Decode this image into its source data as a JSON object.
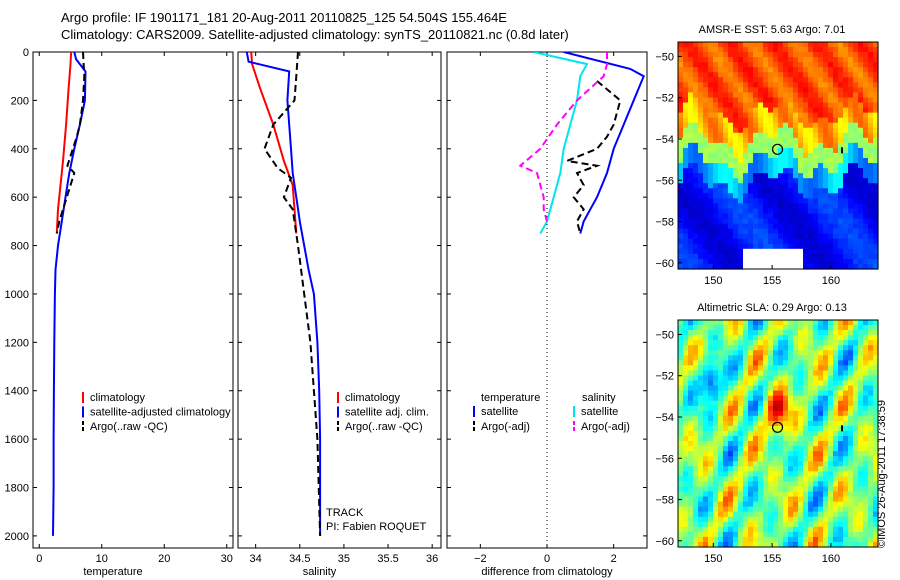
{
  "header": {
    "line1": "Argo profile: IF 1901171_181 20-Aug-2011 20110825_125 54.504S 155.464E",
    "line2": "Climatology: CARS2009. Satellite-adjusted climatology: synTS_20110821.nc (0.8d later)"
  },
  "stamp": "©IMOS 26-Aug-2011 17:38:59",
  "track_label": "TRACK",
  "pi_label": "PI: Fabien ROQUET",
  "colors": {
    "climatology": "#ff0000",
    "satellite": "#0000ff",
    "argo": "#000000",
    "sat_salinity": "#00e5ee",
    "argo_salinity": "#ff00ff"
  },
  "chart_data": [
    {
      "type": "line",
      "name": "temperature-profile",
      "xlabel": "temperature",
      "ylabel": "",
      "xlim": [
        -1,
        31
      ],
      "ylim": [
        2050,
        0
      ],
      "xticks": [
        0,
        10,
        20,
        30
      ],
      "yticks": [
        0,
        200,
        400,
        600,
        800,
        1000,
        1200,
        1400,
        1600,
        1800,
        2000
      ],
      "legend": [
        "climatology",
        "satellite-adjusted climatology",
        "Argo(..raw -QC)"
      ],
      "legend_position": "lower-right",
      "series": [
        {
          "name": "climatology",
          "color": "#ff0000",
          "style": "solid",
          "x": [
            5.1,
            5.0,
            4.7,
            4.3,
            3.8,
            3.4,
            3.0,
            2.8
          ],
          "y": [
            0,
            50,
            150,
            300,
            450,
            550,
            650,
            750
          ]
        },
        {
          "name": "satellite-adjusted climatology",
          "color": "#0000ff",
          "style": "solid",
          "x": [
            5.6,
            5.9,
            7.4,
            7.3,
            6.5,
            5.6,
            4.8,
            4.2,
            3.6,
            3.0,
            2.6,
            2.5,
            2.4,
            2.35,
            2.3,
            2.3,
            2.25,
            2.2
          ],
          "y": [
            0,
            30,
            80,
            200,
            300,
            400,
            500,
            600,
            700,
            800,
            900,
            1000,
            1200,
            1400,
            1600,
            1800,
            1900,
            2000
          ]
        },
        {
          "name": "Argo(..raw -QC)",
          "color": "#000000",
          "style": "dashed",
          "x": [
            7.0,
            7.1,
            7.2,
            7.0,
            6.5,
            6.0,
            4.5,
            5.6,
            4.4,
            3.8,
            3.2,
            2.8
          ],
          "y": [
            0,
            50,
            100,
            200,
            300,
            350,
            470,
            500,
            600,
            650,
            700,
            750
          ]
        }
      ]
    },
    {
      "type": "line",
      "name": "salinity-profile",
      "xlabel": "salinity",
      "ylabel": "",
      "xlim": [
        33.8,
        36.1
      ],
      "ylim": [
        2050,
        0
      ],
      "xticks": [
        34,
        34.5,
        35,
        35.5,
        36
      ],
      "legend": [
        "climatology",
        "satellite adj. clim.",
        "Argo(..raw -QC)"
      ],
      "legend_position": "lower-right",
      "series": [
        {
          "name": "climatology",
          "color": "#ff0000",
          "style": "solid",
          "x": [
            33.95,
            33.96,
            34.05,
            34.2,
            34.32,
            34.42,
            34.44,
            34.46
          ],
          "y": [
            0,
            50,
            150,
            300,
            450,
            550,
            650,
            750
          ]
        },
        {
          "name": "satellite adj. clim.",
          "color": "#0000ff",
          "style": "solid",
          "x": [
            33.9,
            33.92,
            34.38,
            34.36,
            34.38,
            34.4,
            34.42,
            34.46,
            34.5,
            34.55,
            34.6,
            34.66,
            34.7,
            34.72,
            34.73,
            34.73,
            34.73,
            34.73
          ],
          "y": [
            0,
            40,
            80,
            200,
            300,
            400,
            500,
            600,
            700,
            800,
            900,
            1000,
            1200,
            1400,
            1600,
            1800,
            1900,
            2000
          ]
        },
        {
          "name": "Argo(..raw -QC)",
          "color": "#000000",
          "style": "dashed",
          "x": [
            34.48,
            34.46,
            34.44,
            34.2,
            34.1,
            34.25,
            34.4,
            34.32,
            34.42,
            34.44,
            34.48,
            34.55,
            34.62,
            34.7,
            34.73
          ],
          "y": [
            0,
            100,
            200,
            300,
            400,
            480,
            520,
            600,
            650,
            700,
            800,
            1000,
            1200,
            1600,
            2000
          ]
        }
      ]
    },
    {
      "type": "line",
      "name": "difference-from-climatology",
      "xlabel": "difference from climatology",
      "ylabel": "",
      "xlim": [
        -3,
        3
      ],
      "ylim": [
        2050,
        0
      ],
      "xticks": [
        -2,
        0,
        2
      ],
      "legend_temperature": [
        "temperature",
        "satellite",
        "Argo(-adj)"
      ],
      "legend_salinity": [
        "salinity",
        "satellite",
        "Argo(-adj)"
      ],
      "legend_position": "lower-center",
      "series": [
        {
          "name": "temperature satellite",
          "color": "#0000ff",
          "style": "solid",
          "x": [
            0.5,
            2.5,
            2.9,
            2.6,
            2.3,
            2.0,
            1.8,
            1.5,
            1.3,
            1.1,
            1.0
          ],
          "y": [
            0,
            70,
            100,
            200,
            300,
            400,
            500,
            600,
            650,
            700,
            750
          ]
        },
        {
          "name": "temperature Argo(-adj)",
          "color": "#000000",
          "style": "dashed",
          "x": [
            1.5,
            2.2,
            2.0,
            1.8,
            1.5,
            0.6,
            1.5,
            0.9,
            1.1,
            0.8,
            1.1,
            0.9,
            1.0
          ],
          "y": [
            120,
            200,
            300,
            350,
            400,
            450,
            470,
            500,
            550,
            600,
            650,
            700,
            750
          ]
        },
        {
          "name": "salinity satellite",
          "color": "#00e5ee",
          "style": "solid",
          "x": [
            -0.4,
            1.2,
            1.0,
            0.9,
            0.7,
            0.6,
            0.5,
            0.4,
            0.2,
            0.0,
            -0.2
          ],
          "y": [
            0,
            50,
            100,
            200,
            300,
            350,
            400,
            500,
            600,
            700,
            750
          ]
        },
        {
          "name": "salinity Argo(-adj)",
          "color": "#ff00ff",
          "style": "dashed",
          "x": [
            1.8,
            1.8,
            1.7,
            0.9,
            0.3,
            -0.2,
            -0.8,
            -0.3,
            -0.1,
            -0.1,
            0.0
          ],
          "y": [
            0,
            50,
            100,
            200,
            300,
            400,
            470,
            500,
            600,
            650,
            700
          ]
        }
      ]
    },
    {
      "type": "heatmap",
      "name": "amsre-sst-map",
      "title": "AMSR-E SST: 5.63 Argo: 7.01",
      "xlim": [
        147,
        164
      ],
      "ylim": [
        -60.3,
        -49.3
      ],
      "xticks": [
        150,
        155,
        160
      ],
      "yticks": [
        -50,
        -52,
        -54,
        -56,
        -58,
        -60
      ],
      "marker": {
        "lon": 155.46,
        "lat": -54.5
      }
    },
    {
      "type": "heatmap",
      "name": "altimetric-sla-map",
      "title": "Altimetric SLA: 0.29 Argo: 0.13",
      "xlim": [
        147,
        164
      ],
      "ylim": [
        -60.3,
        -49.3
      ],
      "xticks": [
        150,
        155,
        160
      ],
      "yticks": [
        -50,
        -52,
        -54,
        -56,
        -58,
        -60
      ],
      "marker": {
        "lon": 155.46,
        "lat": -54.5
      }
    }
  ]
}
